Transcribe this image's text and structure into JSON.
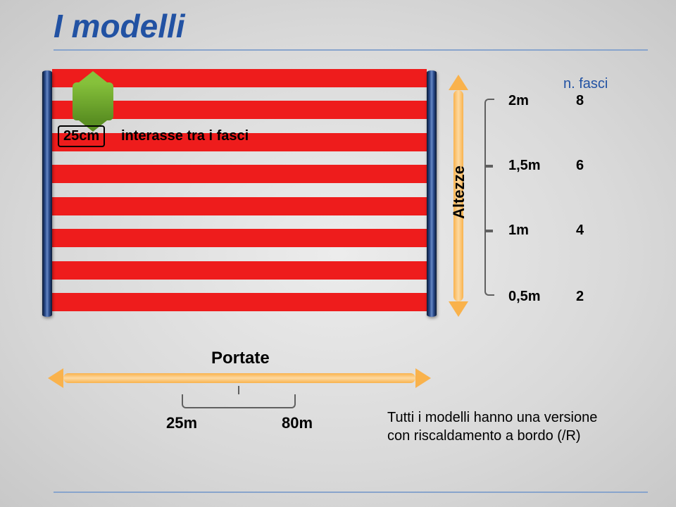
{
  "title": {
    "text": "I modelli",
    "color": "#2252a3",
    "underline_color": "#88a4cc"
  },
  "barrier": {
    "beam_color": "#ee1c1c",
    "beam_count": 8,
    "beam_positions_pct": [
      3,
      16,
      29,
      42,
      55,
      68,
      81,
      94
    ],
    "post_gradient_center": "#6688c4"
  },
  "interasse": {
    "value_label": "25cm",
    "text": "interasse tra i fasci",
    "arrow_color": "#6fa92e"
  },
  "altezze": {
    "label": "Altezze",
    "header": "n. fasci",
    "header_color": "#2252a3",
    "rows": [
      {
        "height": "2m",
        "count": "8"
      },
      {
        "height": "1,5m",
        "count": "6"
      },
      {
        "height": "1m",
        "count": "4"
      },
      {
        "height": "0,5m",
        "count": "2"
      }
    ]
  },
  "portate": {
    "label": "Portate",
    "ranges": [
      {
        "label": "25m"
      },
      {
        "label": "80m"
      }
    ]
  },
  "footnote": {
    "line1": "Tutti i modelli hanno una versione",
    "line2": "con riscaldamento a bordo (/R)"
  },
  "colors": {
    "text": "#1a1a1a",
    "accent_arrow": "#f9b24c",
    "bracket": "#606060"
  }
}
